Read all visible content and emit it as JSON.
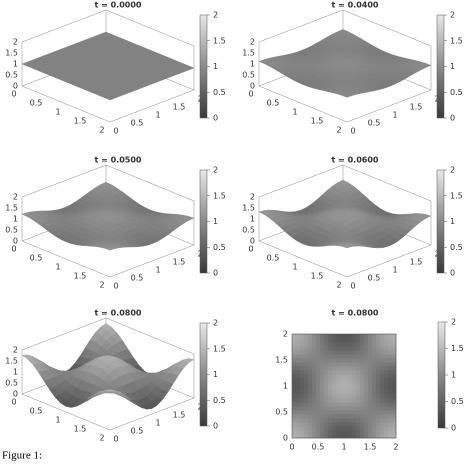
{
  "panels": [
    {
      "title": "t = 0.0000",
      "kind": "surface"
    },
    {
      "title": "t = 0.0400",
      "kind": "surface"
    },
    {
      "title": "t = 0.0500",
      "kind": "surface"
    },
    {
      "title": "t = 0.0600",
      "kind": "surface"
    },
    {
      "title": "t = 0.0800",
      "kind": "surface"
    },
    {
      "title": "t = 0.0800",
      "kind": "heatmap"
    }
  ],
  "ticks": [
    0,
    0.5,
    1,
    1.5,
    2
  ],
  "colorbar_ticks": [
    0,
    0.5,
    1,
    1.5,
    2
  ],
  "caption": "Figure 1:"
}
